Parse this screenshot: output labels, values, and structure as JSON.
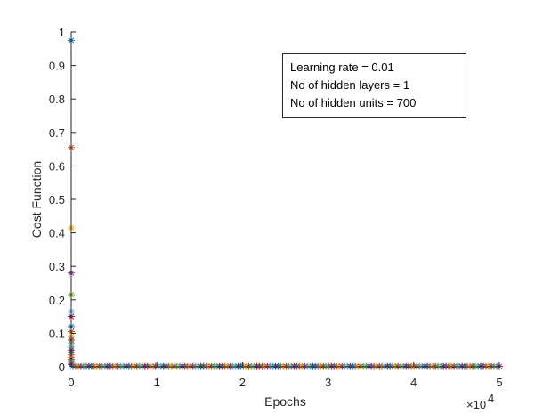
{
  "chart_data": {
    "type": "scatter",
    "marker": "asterisk",
    "xlabel": "Epochs",
    "ylabel": "Cost Function",
    "x_exponent_base": "×10",
    "x_exponent_power": "4",
    "xlim": [
      0,
      5
    ],
    "ylim": [
      0,
      1
    ],
    "x_ticks": [
      "0",
      "1",
      "2",
      "3",
      "4",
      "5"
    ],
    "y_ticks": [
      "0",
      "0.1",
      "0.2",
      "0.3",
      "0.4",
      "0.5",
      "0.6",
      "0.7",
      "0.8",
      "0.9",
      "1"
    ],
    "grid": false,
    "annotation": [
      "Learning rate = 0.01",
      "No of hidden layers = 1",
      "No of hidden units = 700"
    ],
    "early_points": [
      {
        "x": 0,
        "y": 0.975
      },
      {
        "x": 0,
        "y": 0.655
      },
      {
        "x": 0,
        "y": 0.415
      },
      {
        "x": 0,
        "y": 0.28
      },
      {
        "x": 0,
        "y": 0.215
      },
      {
        "x": 0,
        "y": 0.165
      },
      {
        "x": 0,
        "y": 0.15
      },
      {
        "x": 0,
        "y": 0.12
      },
      {
        "x": 0,
        "y": 0.105
      },
      {
        "x": 0,
        "y": 0.09
      },
      {
        "x": 0,
        "y": 0.08
      },
      {
        "x": 0,
        "y": 0.07
      },
      {
        "x": 0,
        "y": 0.06
      },
      {
        "x": 0,
        "y": 0.05
      },
      {
        "x": 0,
        "y": 0.042
      },
      {
        "x": 0,
        "y": 0.035
      },
      {
        "x": 0,
        "y": 0.028
      },
      {
        "x": 0,
        "y": 0.022
      },
      {
        "x": 0,
        "y": 0.016
      },
      {
        "x": 0,
        "y": 0.011
      },
      {
        "x": 0,
        "y": 0.007
      }
    ],
    "plateau": {
      "x_start": 0.02,
      "x_end": 5,
      "y": 0.001
    },
    "colors": [
      "#0072BD",
      "#D95319",
      "#EDB120",
      "#7E2F8E",
      "#77AC30",
      "#4DBEEE",
      "#A2142F"
    ]
  }
}
